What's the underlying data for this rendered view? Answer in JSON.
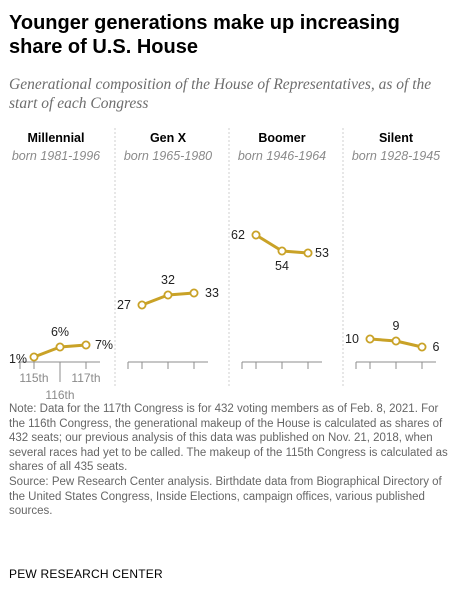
{
  "title": "Younger generations make up increasing share of U.S. House",
  "subtitle": "Generational composition of the House of Representatives, as of the start of each Congress",
  "colors": {
    "line": "#c9a227",
    "marker_fill": "#ffffff",
    "divider": "#cfcfcf",
    "axis": "#8c8c8c"
  },
  "chart_data": {
    "type": "line",
    "categories": [
      "115th",
      "116th",
      "117th"
    ],
    "ylim": [
      0,
      65
    ],
    "panels": [
      {
        "name": "Millennial",
        "born": "born 1981-1996",
        "values": [
          1,
          6,
          7
        ],
        "labels": [
          "1%",
          "6%",
          "7%"
        ]
      },
      {
        "name": "Gen X",
        "born": "born 1965-1980",
        "values": [
          27,
          32,
          33
        ],
        "labels": [
          "27",
          "32",
          "33"
        ]
      },
      {
        "name": "Boomer",
        "born": "born 1946-1964",
        "values": [
          62,
          54,
          53
        ],
        "labels": [
          "62",
          "54",
          "53"
        ]
      },
      {
        "name": "Silent",
        "born": "born 1928-1945",
        "values": [
          10,
          9,
          6
        ],
        "labels": [
          "10",
          "9",
          "6"
        ]
      }
    ]
  },
  "notes": [
    "Note: Data for the 117th Congress is for 432 voting members as of Feb. 8, 2021. For the 116th Congress, the generational makeup of the House is calculated as shares of 432 seats; our previous analysis of this data was published on Nov. 21, 2018, when several races had yet to be called. The makeup of the 115th Congress is calculated as shares of all 435 seats.",
    "Source: Pew Research Center analysis. Birthdate data from Biographical Directory of the United States Congress, Inside Elections, campaign offices, various published sources."
  ],
  "brand": "PEW RESEARCH CENTER"
}
